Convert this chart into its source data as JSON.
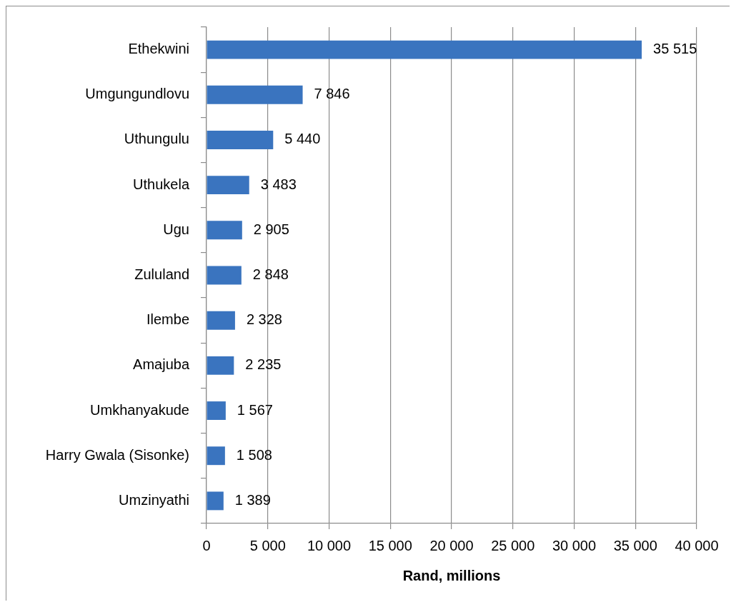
{
  "chart_data": {
    "type": "bar",
    "orientation": "horizontal",
    "xlabel": "Rand, millions",
    "categories": [
      "Ethekwini",
      "Umgungundlovu",
      "Uthungulu",
      "Uthukela",
      "Ugu",
      "Zululand",
      "Ilembe",
      "Amajuba",
      "Umkhanyakude",
      "Harry Gwala (Sisonke)",
      "Umzinyathi"
    ],
    "values": [
      35515,
      7846,
      5440,
      3483,
      2905,
      2848,
      2328,
      2235,
      1567,
      1508,
      1389
    ],
    "value_labels": [
      "35 515",
      "7 846",
      "5 440",
      "3 483",
      "2 905",
      "2 848",
      "2 328",
      "2 235",
      "1 567",
      "1 508",
      "1 389"
    ],
    "color": "#3a74bf",
    "xlim": [
      0,
      40000
    ],
    "xticks": [
      0,
      {
        "value": 5000,
        "label": "5 000"
      },
      {
        "value": 10000,
        "label": "10 000"
      },
      {
        "value": 15000,
        "label": "15 000"
      },
      {
        "value": 20000,
        "label": "20 000"
      },
      {
        "value": 25000,
        "label": "25 000"
      },
      {
        "value": 30000,
        "label": "30 000"
      },
      {
        "value": 35000,
        "label": "35 000"
      },
      {
        "value": 40000,
        "label": "40 000"
      }
    ],
    "grid": "x"
  }
}
